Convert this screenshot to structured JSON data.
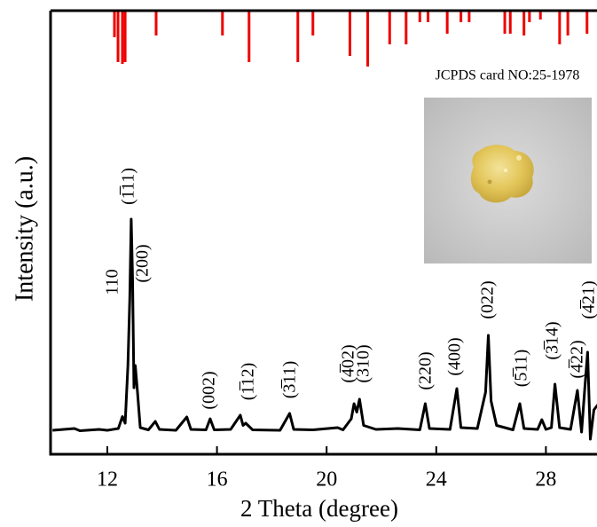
{
  "chart_data": {
    "type": "line",
    "x_label": "2 Theta (degree)",
    "y_label": "Intensity (a.u.)",
    "xlim": [
      10,
      30
    ],
    "xticks": [
      12,
      16,
      20,
      24,
      28
    ],
    "ylim": [
      0,
      100
    ],
    "series": [
      {
        "color": "#000000",
        "x": [
          10,
          10.8,
          11,
          11.7,
          12.0,
          12.4,
          12.55,
          12.65,
          12.75,
          12.82,
          12.87,
          12.92,
          12.97,
          13.02,
          13.1,
          13.2,
          13.5,
          13.75,
          13.9,
          14.5,
          14.9,
          15.05,
          15.6,
          15.75,
          15.9,
          16.5,
          16.85,
          16.95,
          17.05,
          17.3,
          18.3,
          18.65,
          18.8,
          19.5,
          20.4,
          20.6,
          20.9,
          21.0,
          21.1,
          21.2,
          21.35,
          21.8,
          22.6,
          23.4,
          23.6,
          23.75,
          24.5,
          24.75,
          24.9,
          25.5,
          25.8,
          25.9,
          26.0,
          26.2,
          26.8,
          27.05,
          27.2,
          27.7,
          27.85,
          28.0,
          28.2,
          28.33,
          28.5,
          28.9,
          29.15,
          29.3,
          29.42,
          29.52,
          29.62,
          29.75,
          30
        ],
        "values": [
          5.4,
          5.8,
          5.3,
          5.6,
          5.4,
          5.8,
          8.5,
          7,
          20,
          35,
          53,
          40,
          15,
          20,
          14,
          6,
          5.5,
          7.4,
          5.6,
          5.4,
          8.4,
          5.6,
          5.5,
          8,
          5.5,
          5.6,
          8.8,
          6.5,
          7,
          5.5,
          5.4,
          9.2,
          5.6,
          5.5,
          6,
          5.5,
          8,
          11.4,
          9.5,
          12.4,
          6.5,
          5.6,
          5.8,
          5.5,
          11.4,
          5.8,
          5.6,
          14.8,
          6,
          5.8,
          14,
          26.8,
          12,
          6.5,
          5.5,
          11.4,
          5.8,
          5.6,
          7.8,
          5.6,
          6,
          15.8,
          6,
          5.6,
          14.4,
          5,
          15,
          23,
          3.4,
          10,
          12
        ]
      }
    ],
    "reference": {
      "type": "stick",
      "title": "JCPDS card NO:25-1978",
      "color": "#ee0000",
      "ylim": [
        0,
        100
      ],
      "x": [
        12.26,
        12.39,
        12.55,
        12.65,
        13.78,
        16.2,
        17.17,
        18.95,
        19.5,
        20.85,
        21.5,
        22.3,
        22.9,
        23.4,
        23.7,
        24.4,
        24.9,
        25.2,
        26.5,
        26.7,
        27.2,
        27.4,
        27.8,
        28.5,
        28.8,
        29.5
      ],
      "values": [
        30,
        58,
        60,
        58,
        28,
        28,
        58,
        58,
        28,
        51,
        63,
        38,
        38,
        13,
        13,
        26,
        13,
        13,
        26,
        26,
        28,
        13,
        10,
        38,
        28,
        26
      ]
    },
    "annotations": [
      "110",
      "(1̅11)",
      "(200)",
      "(002)",
      "(1̅12)",
      "(3̅11)",
      "(4̅02)",
      "(310)",
      "(220)",
      "(400)",
      "(022)",
      "(5̅11)",
      "(3̅14)",
      "(4̅22)",
      "(4̅21)"
    ]
  }
}
